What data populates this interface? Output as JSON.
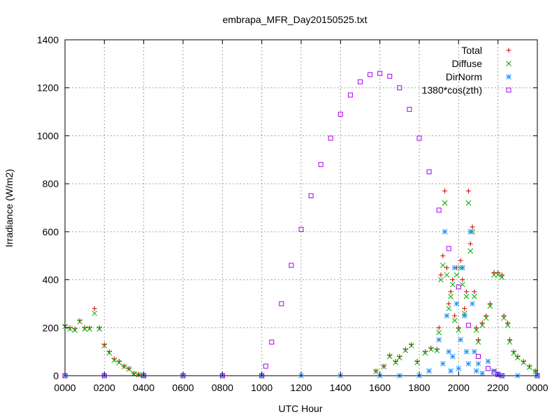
{
  "chart_data": {
    "type": "scatter",
    "title": "embrapa_MFR_Day20150525.txt",
    "xlabel": "UTC Hour",
    "ylabel": "Irradiance (W/m2)",
    "xlim": [
      0,
      24
    ],
    "ylim": [
      0,
      1400
    ],
    "grid": true,
    "legend_position": "top-right",
    "x_tick_labels": [
      "0000",
      "0200",
      "0400",
      "0600",
      "0800",
      "1000",
      "1200",
      "1400",
      "1600",
      "1800",
      "2000",
      "2200",
      "0000"
    ],
    "y_ticks": [
      0,
      200,
      400,
      600,
      800,
      1000,
      1200,
      1400
    ],
    "series": [
      {
        "name": "Total",
        "marker": "plus",
        "color": "#cc0000",
        "x": [
          0,
          0.25,
          0.5,
          0.75,
          1.0,
          1.25,
          1.5,
          1.75,
          2.0,
          2.25,
          2.5,
          2.75,
          3.0,
          3.25,
          3.5,
          3.75,
          4.0,
          15.8,
          16.2,
          16.5,
          16.8,
          17.0,
          17.3,
          17.6,
          17.9,
          18.3,
          18.6,
          18.9,
          19.0,
          19.1,
          19.2,
          19.3,
          19.4,
          19.5,
          19.6,
          19.7,
          19.8,
          19.9,
          20.0,
          20.1,
          20.2,
          20.3,
          20.4,
          20.5,
          20.6,
          20.7,
          20.8,
          20.9,
          21.0,
          21.2,
          21.4,
          21.6,
          21.8,
          22.0,
          22.2,
          22.3,
          22.5,
          22.6,
          22.8,
          23.0,
          23.3,
          23.6,
          23.9
        ],
        "y": [
          210,
          200,
          195,
          230,
          200,
          200,
          280,
          200,
          130,
          100,
          70,
          60,
          40,
          30,
          10,
          5,
          0,
          20,
          40,
          85,
          60,
          80,
          110,
          130,
          60,
          100,
          115,
          110,
          200,
          420,
          500,
          770,
          450,
          300,
          350,
          400,
          250,
          450,
          200,
          480,
          400,
          280,
          350,
          770,
          550,
          620,
          350,
          200,
          150,
          220,
          250,
          300,
          430,
          430,
          420,
          250,
          220,
          150,
          100,
          80,
          60,
          40,
          20
        ]
      },
      {
        "name": "Diffuse",
        "marker": "cross",
        "color": "#00aa00",
        "x": [
          0,
          0.25,
          0.5,
          0.75,
          1.0,
          1.25,
          1.5,
          1.75,
          2.0,
          2.25,
          2.5,
          2.75,
          3.0,
          3.25,
          3.5,
          3.75,
          4.0,
          15.8,
          16.2,
          16.5,
          16.8,
          17.0,
          17.3,
          17.6,
          17.9,
          18.3,
          18.6,
          18.9,
          19.0,
          19.1,
          19.2,
          19.3,
          19.4,
          19.5,
          19.6,
          19.7,
          19.8,
          19.9,
          20.0,
          20.1,
          20.2,
          20.3,
          20.4,
          20.5,
          20.6,
          20.7,
          20.8,
          20.9,
          21.0,
          21.2,
          21.4,
          21.6,
          21.8,
          22.0,
          22.2,
          22.3,
          22.5,
          22.6,
          22.8,
          23.0,
          23.3,
          23.6,
          23.9
        ],
        "y": [
          205,
          195,
          190,
          225,
          195,
          195,
          260,
          195,
          125,
          95,
          65,
          55,
          38,
          28,
          8,
          4,
          0,
          18,
          38,
          80,
          55,
          75,
          105,
          125,
          55,
          95,
          110,
          105,
          180,
          400,
          460,
          720,
          420,
          280,
          330,
          380,
          230,
          420,
          190,
          450,
          380,
          260,
          330,
          720,
          520,
          600,
          330,
          190,
          140,
          210,
          240,
          290,
          420,
          420,
          410,
          240,
          210,
          140,
          95,
          75,
          55,
          35,
          18
        ]
      },
      {
        "name": "DirNorm",
        "marker": "star",
        "color": "#1e90ff",
        "x": [
          0,
          2.0,
          4.0,
          6.0,
          8.0,
          10.0,
          12.0,
          14.0,
          16.0,
          17.0,
          18.0,
          18.5,
          19.0,
          19.2,
          19.3,
          19.4,
          19.5,
          19.6,
          19.7,
          19.8,
          19.9,
          20.0,
          20.1,
          20.2,
          20.3,
          20.4,
          20.5,
          20.6,
          20.7,
          20.8,
          20.9,
          21.0,
          21.2,
          21.5,
          21.8,
          22.0,
          22.2,
          23.0,
          24.0
        ],
        "y": [
          0,
          0,
          0,
          0,
          0,
          0,
          0,
          0,
          0,
          0,
          0,
          20,
          150,
          50,
          600,
          250,
          100,
          20,
          80,
          450,
          300,
          30,
          150,
          450,
          250,
          100,
          50,
          600,
          300,
          100,
          20,
          50,
          10,
          60,
          20,
          5,
          0,
          0,
          0
        ]
      },
      {
        "name": "1380*cos(zth)",
        "marker": "square",
        "color": "#aa00ee",
        "x": [
          0,
          2,
          4,
          6,
          8,
          10.0,
          10.2,
          10.5,
          11,
          11.5,
          12,
          12.5,
          13,
          13.5,
          14,
          14.5,
          15,
          15.5,
          16.0,
          16.5,
          17,
          17.5,
          18,
          18.5,
          19,
          19.5,
          20,
          20.5,
          21,
          21.5,
          21.8,
          22.0,
          22.2,
          24
        ],
        "y": [
          0,
          0,
          0,
          0,
          0,
          0,
          40,
          140,
          300,
          460,
          610,
          750,
          880,
          990,
          1090,
          1170,
          1225,
          1255,
          1260,
          1248,
          1200,
          1110,
          990,
          850,
          690,
          530,
          370,
          210,
          80,
          30,
          15,
          5,
          0,
          0
        ]
      }
    ]
  }
}
